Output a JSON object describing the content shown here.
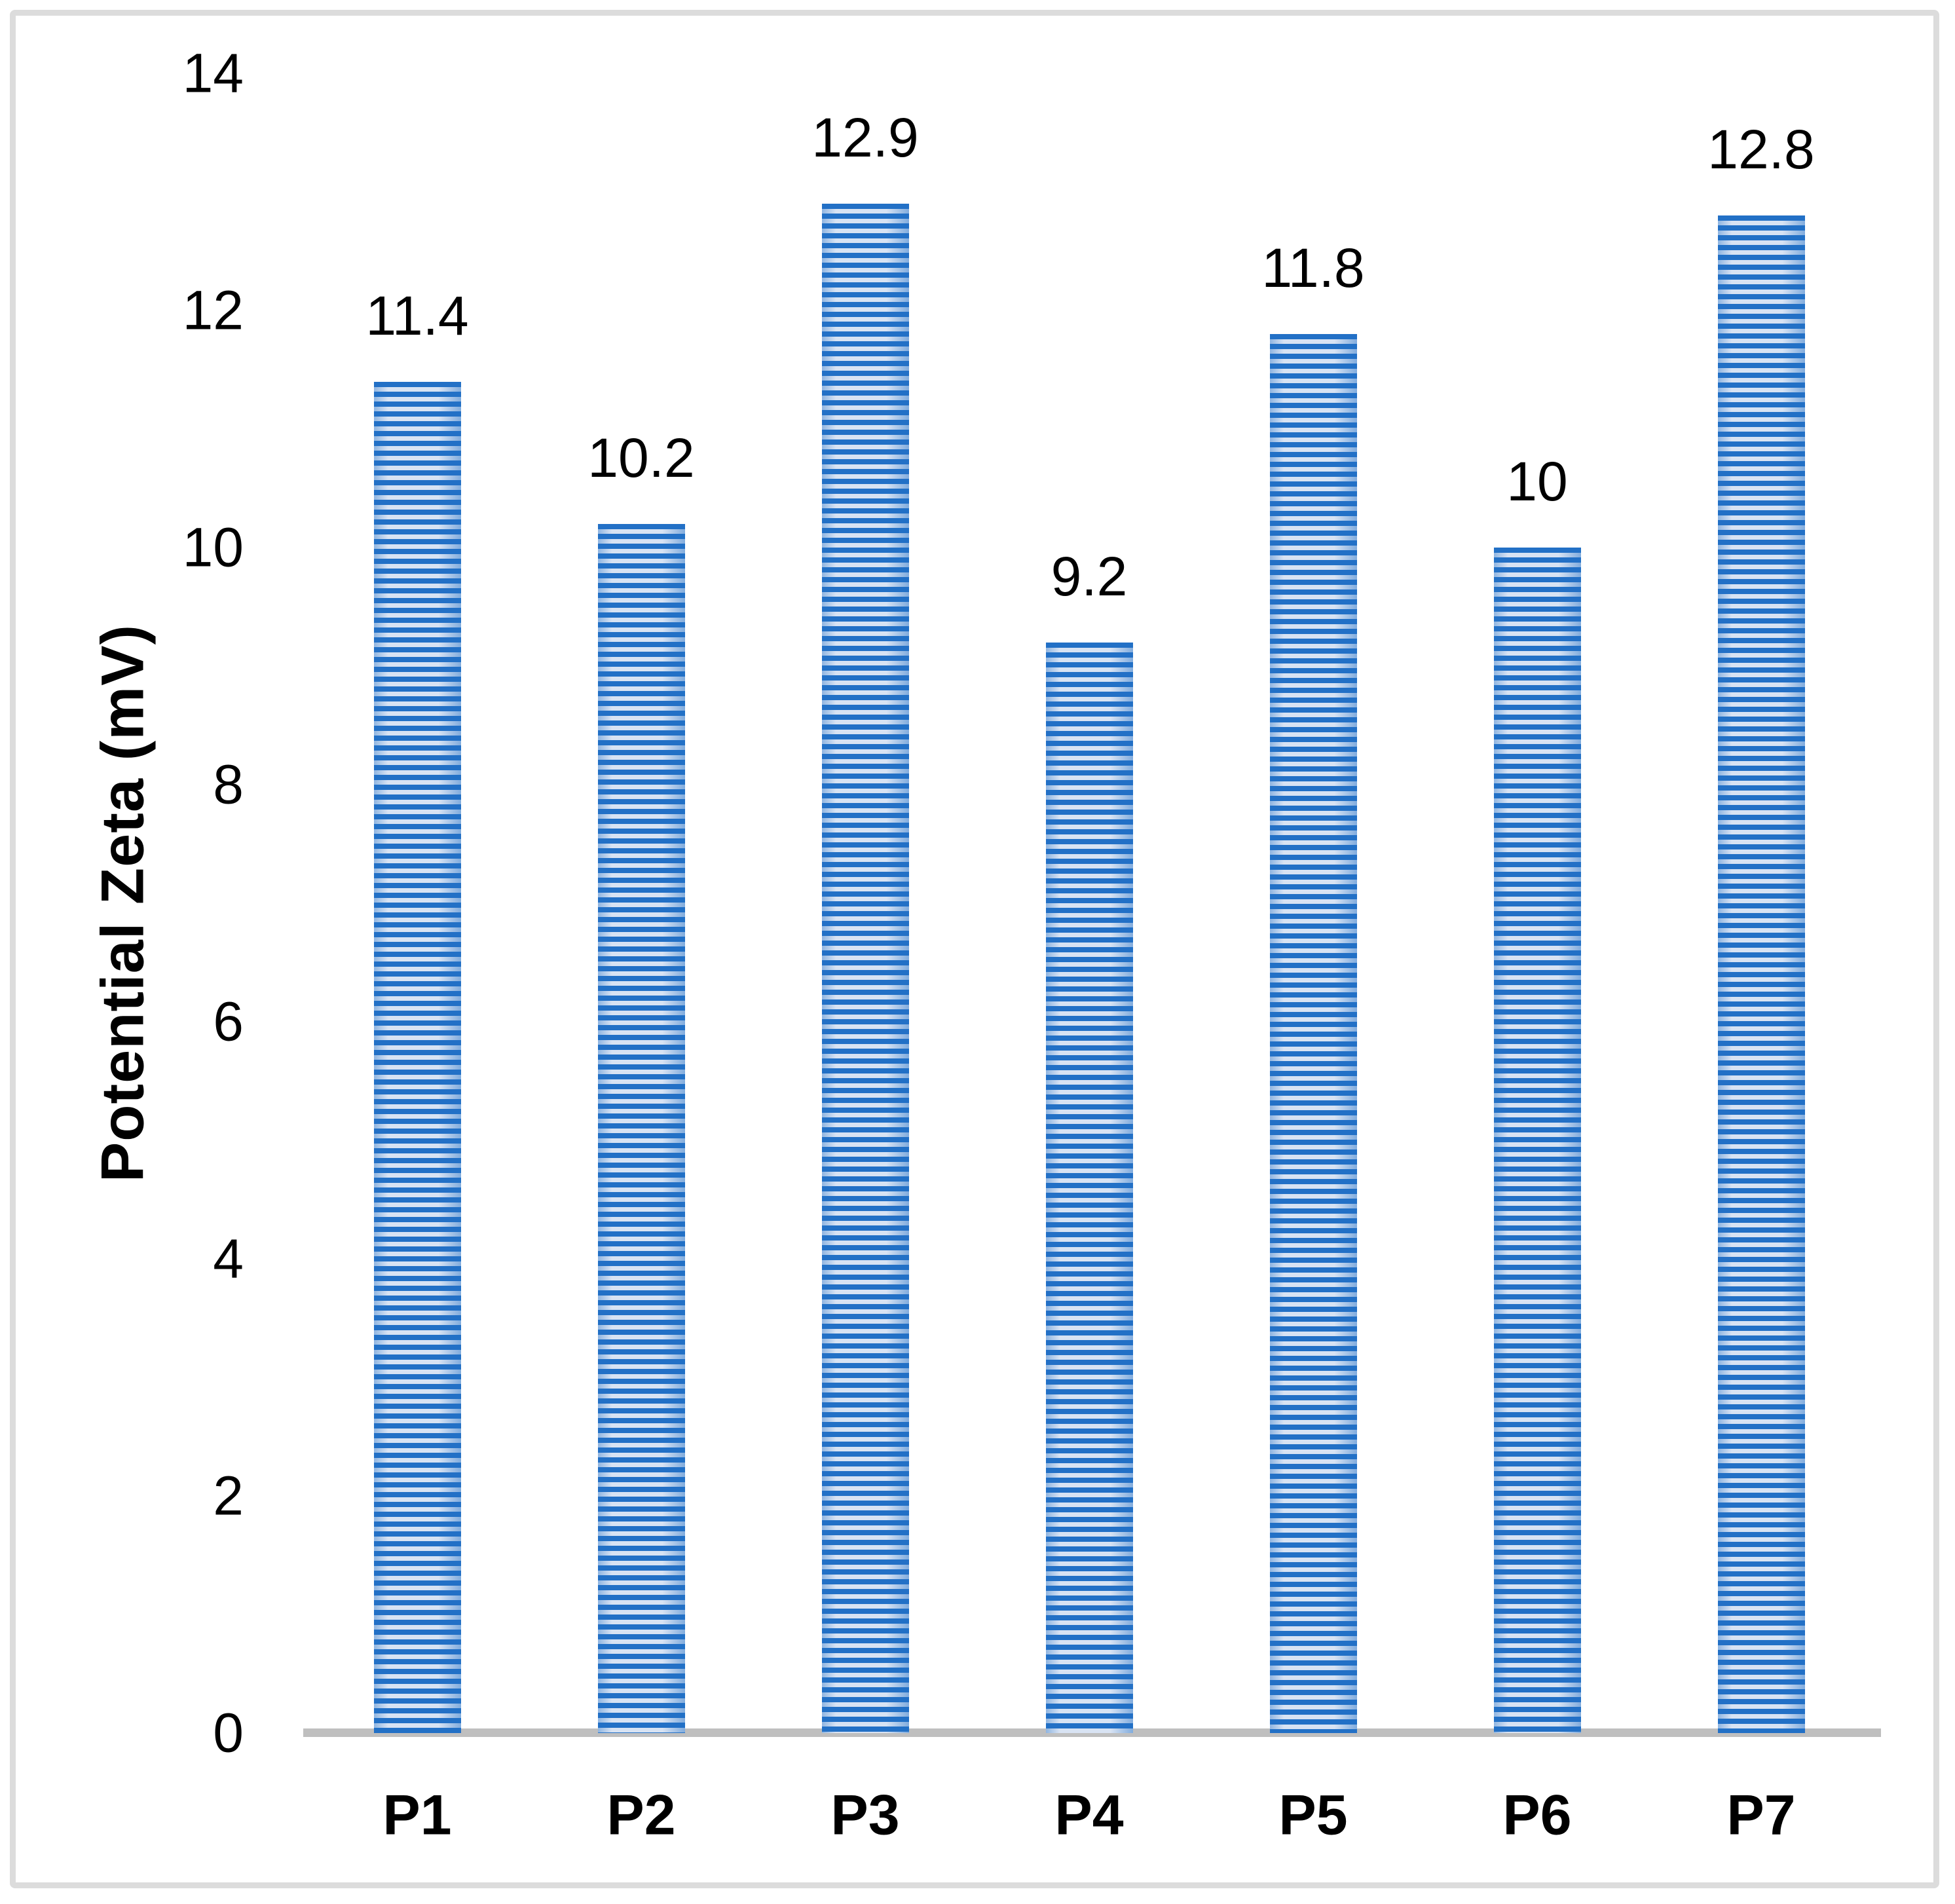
{
  "chart_data": {
    "type": "bar",
    "categories": [
      "P1",
      "P2",
      "P3",
      "P4",
      "P5",
      "P6",
      "P7"
    ],
    "values": [
      11.4,
      10.2,
      12.9,
      9.2,
      11.8,
      10,
      12.8
    ],
    "data_labels": [
      "11.4",
      "10.2",
      "12.9",
      "9.2",
      "11.8",
      "10",
      "12.8"
    ],
    "title": "",
    "xlabel": "",
    "ylabel": "Potential Zeta (mV)",
    "ylim": [
      0,
      14
    ],
    "yticks": [
      0,
      2,
      4,
      6,
      8,
      10,
      12,
      14
    ],
    "ytick_labels": [
      "0",
      "2",
      "4",
      "6",
      "8",
      "10",
      "12",
      "14"
    ],
    "grid": false,
    "legend_position": "none",
    "bar_pattern": "horizontal-stripes"
  },
  "colors": {
    "bar_blue": "#2270c6",
    "bar_light": "#d8e3f3",
    "axis_line": "#bfbfbf",
    "frame": "#dcdcdc",
    "text": "#000000"
  }
}
